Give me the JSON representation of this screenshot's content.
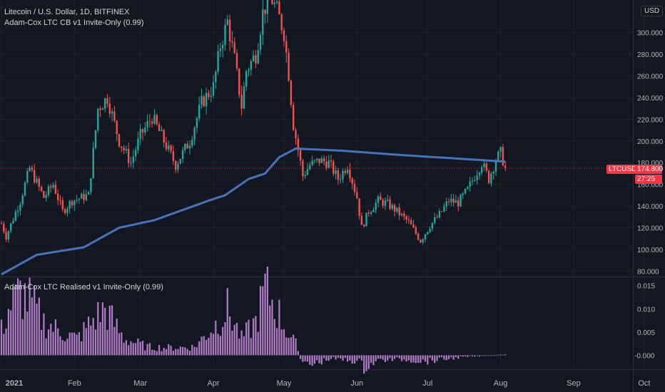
{
  "header": {
    "symbol_title": "Litecoin / U.S. Dollar, 1D, BITFINEX",
    "indicator1": "Adam-Cox LTC CB v1 Invite-Only (0.99)",
    "indicator2": "Adam-Cox LTC Realised v1 Invite-Only (0.99)"
  },
  "currency_button": "USD",
  "price_tag": {
    "symbol": "LTCUSD",
    "price": "174.800",
    "countdown": "27:25",
    "color": "#f23645"
  },
  "colors": {
    "up": "#26a69a",
    "down": "#ef5350",
    "ma_line": "#4a72b8",
    "histogram": "#b07cc6",
    "background": "#131722"
  },
  "chart_data": [
    {
      "type": "candlestick",
      "symbol": "LTCUSD",
      "interval": "1D",
      "exchange": "BITFINEX",
      "y_ticks": [
        "80.000",
        "100.000",
        "120.000",
        "140.000",
        "160.000",
        "180.000",
        "200.000",
        "220.000",
        "240.000",
        "260.000",
        "280.000",
        "300.000"
      ],
      "x_ticks": [
        "2021",
        "Feb",
        "Mar",
        "Apr",
        "May",
        "Jun",
        "Jul",
        "Aug",
        "Sep",
        "Oct"
      ],
      "ylim": [
        75,
        330
      ],
      "close_waypoints": [
        {
          "day": 0,
          "close": 124
        },
        {
          "day": 2,
          "close": 112
        },
        {
          "day": 8,
          "close": 145
        },
        {
          "day": 12,
          "close": 175
        },
        {
          "day": 18,
          "close": 148
        },
        {
          "day": 22,
          "close": 160
        },
        {
          "day": 26,
          "close": 135
        },
        {
          "day": 30,
          "close": 145
        },
        {
          "day": 37,
          "close": 150
        },
        {
          "day": 41,
          "close": 230
        },
        {
          "day": 45,
          "close": 240
        },
        {
          "day": 50,
          "close": 200
        },
        {
          "day": 55,
          "close": 180
        },
        {
          "day": 59,
          "close": 205
        },
        {
          "day": 64,
          "close": 222
        },
        {
          "day": 69,
          "close": 200
        },
        {
          "day": 74,
          "close": 178
        },
        {
          "day": 80,
          "close": 200
        },
        {
          "day": 85,
          "close": 235
        },
        {
          "day": 90,
          "close": 250
        },
        {
          "day": 93,
          "close": 288
        },
        {
          "day": 96,
          "close": 310
        },
        {
          "day": 99,
          "close": 275
        },
        {
          "day": 102,
          "close": 232
        },
        {
          "day": 104,
          "close": 265
        },
        {
          "day": 108,
          "close": 280
        },
        {
          "day": 111,
          "close": 318
        },
        {
          "day": 114,
          "close": 335
        },
        {
          "day": 117,
          "close": 320
        },
        {
          "day": 120,
          "close": 300
        },
        {
          "day": 122,
          "close": 262
        },
        {
          "day": 124,
          "close": 215
        },
        {
          "day": 126,
          "close": 192
        },
        {
          "day": 128,
          "close": 168
        },
        {
          "day": 131,
          "close": 178
        },
        {
          "day": 135,
          "close": 182
        },
        {
          "day": 139,
          "close": 180
        },
        {
          "day": 143,
          "close": 165
        },
        {
          "day": 147,
          "close": 178
        },
        {
          "day": 151,
          "close": 148
        },
        {
          "day": 153,
          "close": 120
        },
        {
          "day": 156,
          "close": 135
        },
        {
          "day": 160,
          "close": 145
        },
        {
          "day": 164,
          "close": 142
        },
        {
          "day": 168,
          "close": 135
        },
        {
          "day": 173,
          "close": 125
        },
        {
          "day": 178,
          "close": 108
        },
        {
          "day": 182,
          "close": 122
        },
        {
          "day": 186,
          "close": 132
        },
        {
          "day": 190,
          "close": 145
        },
        {
          "day": 194,
          "close": 143
        },
        {
          "day": 198,
          "close": 155
        },
        {
          "day": 201,
          "close": 168
        },
        {
          "day": 204,
          "close": 180
        },
        {
          "day": 207,
          "close": 165
        },
        {
          "day": 210,
          "close": 183
        },
        {
          "day": 212,
          "close": 189
        },
        {
          "day": 214,
          "close": 175
        }
      ],
      "ma_waypoints": [
        {
          "day": 0,
          "value": 77
        },
        {
          "day": 15,
          "value": 95
        },
        {
          "day": 35,
          "value": 102
        },
        {
          "day": 50,
          "value": 120
        },
        {
          "day": 65,
          "value": 127
        },
        {
          "day": 88,
          "value": 145
        },
        {
          "day": 95,
          "value": 150
        },
        {
          "day": 105,
          "value": 165
        },
        {
          "day": 112,
          "value": 170
        },
        {
          "day": 118,
          "value": 185
        },
        {
          "day": 125,
          "value": 193
        },
        {
          "day": 145,
          "value": 191
        },
        {
          "day": 170,
          "value": 187
        },
        {
          "day": 214,
          "value": 181
        }
      ],
      "last_price": 174.8
    },
    {
      "type": "histogram",
      "name": "Adam-Cox LTC Realised v1 Invite-Only (0.99)",
      "y_ticks": [
        "0.015",
        "0.010",
        "0.005",
        "-0.000"
      ],
      "ylim": [
        -0.003,
        0.0168
      ],
      "waypoints": [
        {
          "day": 0,
          "value": 0.006
        },
        {
          "day": 3,
          "value": 0.011
        },
        {
          "day": 8,
          "value": 0.015
        },
        {
          "day": 12,
          "value": 0.013
        },
        {
          "day": 18,
          "value": 0.008
        },
        {
          "day": 24,
          "value": 0.006
        },
        {
          "day": 32,
          "value": 0.004
        },
        {
          "day": 40,
          "value": 0.009
        },
        {
          "day": 44,
          "value": 0.011
        },
        {
          "day": 52,
          "value": 0.004
        },
        {
          "day": 62,
          "value": 0.002
        },
        {
          "day": 72,
          "value": 0.0018
        },
        {
          "day": 82,
          "value": 0.002
        },
        {
          "day": 92,
          "value": 0.008
        },
        {
          "day": 96,
          "value": 0.011
        },
        {
          "day": 102,
          "value": 0.004
        },
        {
          "day": 108,
          "value": 0.008
        },
        {
          "day": 112,
          "value": 0.016
        },
        {
          "day": 116,
          "value": 0.012
        },
        {
          "day": 122,
          "value": 0.005
        },
        {
          "day": 126,
          "value": 0.002
        },
        {
          "day": 127,
          "value": -0.001
        },
        {
          "day": 130,
          "value": -0.0025
        },
        {
          "day": 140,
          "value": -0.0008
        },
        {
          "day": 152,
          "value": -0.0015
        },
        {
          "day": 154,
          "value": -0.003
        },
        {
          "day": 160,
          "value": -0.0012
        },
        {
          "day": 170,
          "value": -0.001
        },
        {
          "day": 180,
          "value": -0.0015
        },
        {
          "day": 195,
          "value": -0.0005
        },
        {
          "day": 214,
          "value": 0.0002
        }
      ]
    }
  ]
}
